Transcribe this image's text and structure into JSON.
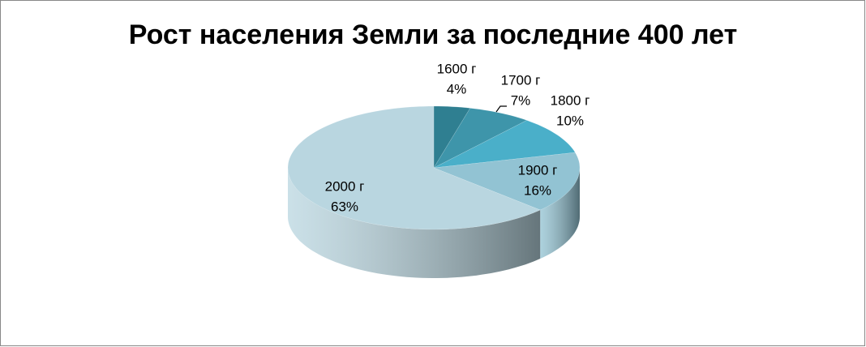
{
  "chart_data": {
    "type": "pie3d",
    "title": "Рост населения Земли за последние 400 лет",
    "categories": [
      "1600 г",
      "1700 г",
      "1800 г",
      "1900 г",
      "2000 г"
    ],
    "values": [
      4,
      7,
      10,
      16,
      63
    ],
    "value_labels": [
      "4%",
      "7%",
      "10%",
      "16%",
      "63%"
    ],
    "colors": [
      "#2f7f91",
      "#3e95aa",
      "#4aafc9",
      "#92c3d3",
      "#b9d6e0"
    ]
  }
}
